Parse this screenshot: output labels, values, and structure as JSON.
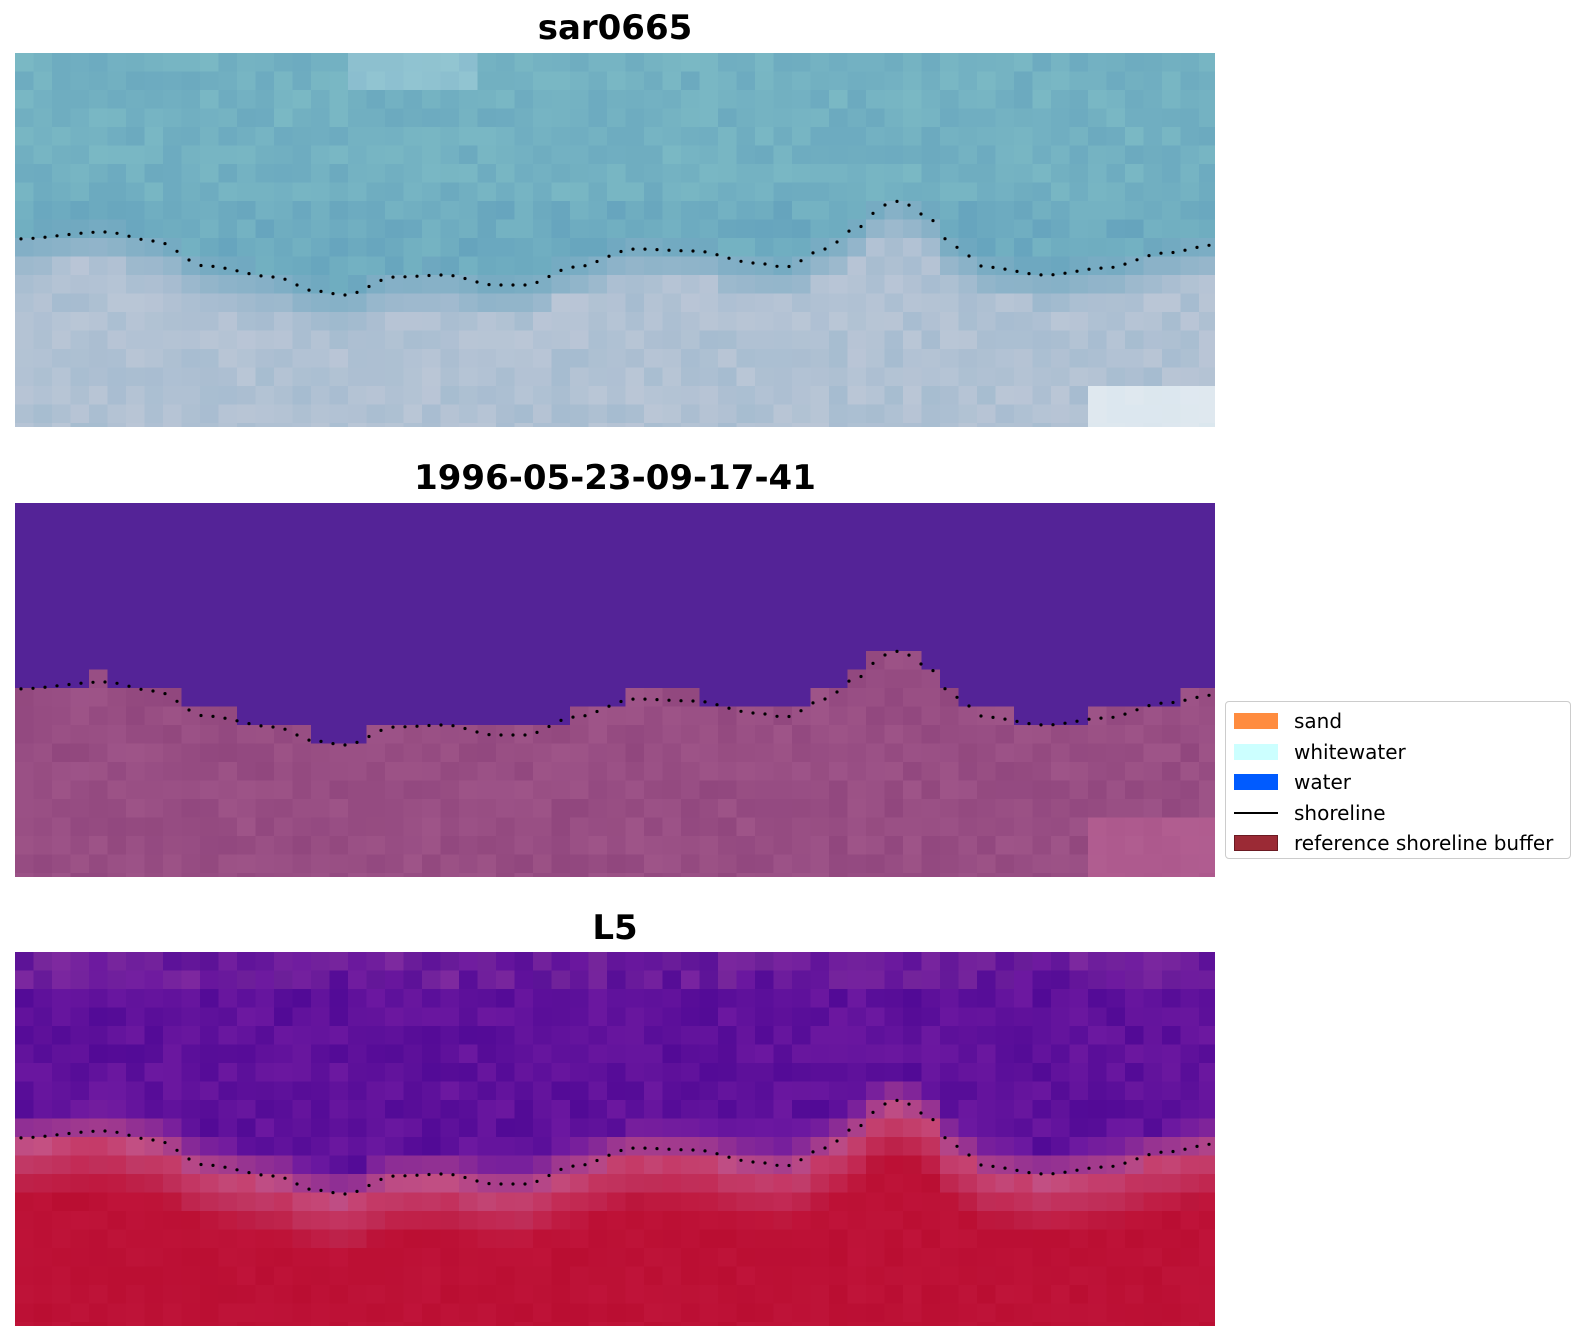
{
  "panels": [
    {
      "title": "sar0665"
    },
    {
      "title": "1996-05-23-09-17-41"
    },
    {
      "title": "L5"
    }
  ],
  "legend": {
    "items": [
      {
        "label": "sand",
        "color": "#ff8c3f"
      },
      {
        "label": "whitewater",
        "color": "#ccffff"
      },
      {
        "label": "water",
        "color": "#005bff"
      },
      {
        "label": "shoreline",
        "color": "#000000",
        "kind": "line"
      },
      {
        "label": "reference shoreline buffer",
        "color": "#9b2a35",
        "edge": "#6b1a22"
      }
    ]
  },
  "colors": {
    "classified_water": "#542397",
    "classified_land": "#91477e",
    "l5_water": "#5c0f9c",
    "l5_land": "#c01238",
    "shoreline_dots": "#000000"
  }
}
